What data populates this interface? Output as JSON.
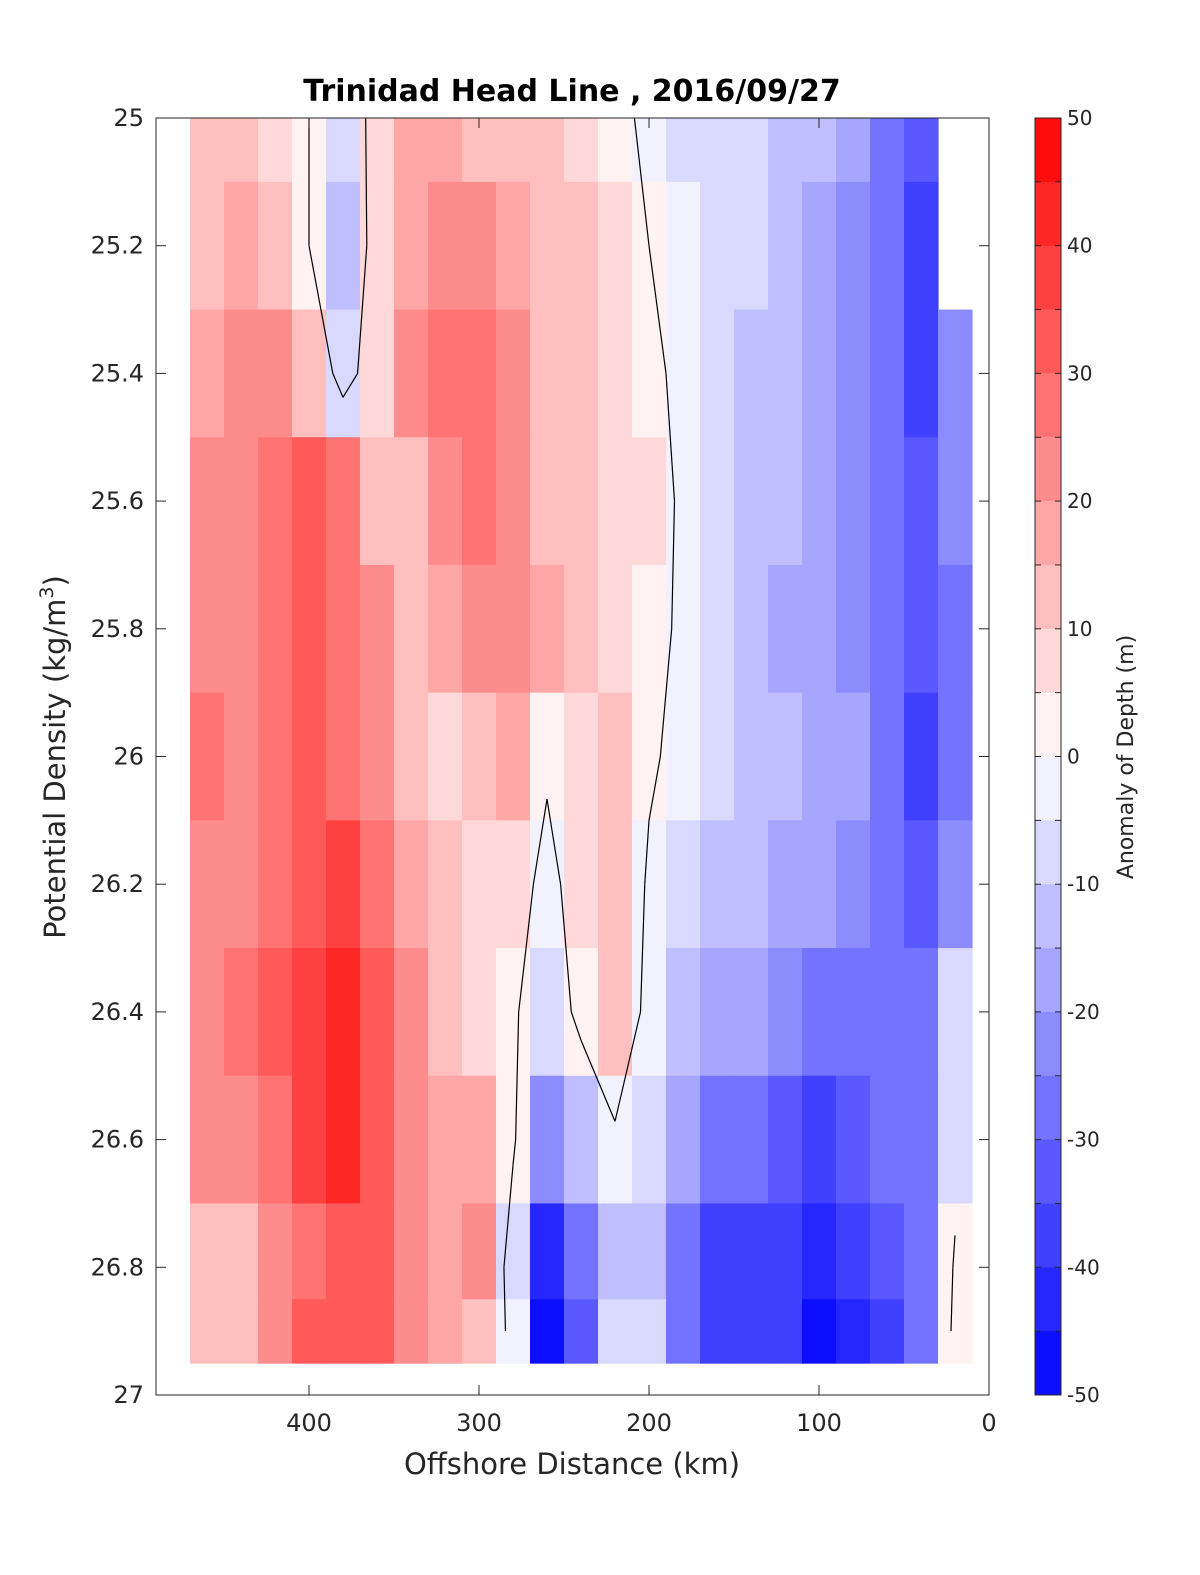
{
  "chart_data": {
    "type": "heatmap",
    "title": "Trinidad Head Line , 2016/09/27",
    "xlabel": "Offshore Distance (km)",
    "ylabel_prefix": "Potential Density (kg/m",
    "ylabel_sup": "3",
    "ylabel_suffix": ")",
    "xlim": [
      490,
      0
    ],
    "ylim": [
      27,
      25
    ],
    "x_ticks": [
      400,
      300,
      200,
      100,
      0
    ],
    "x_tick_labels": [
      "400",
      "300",
      "200",
      "100",
      "0"
    ],
    "y_ticks": [
      25,
      25.2,
      25.4,
      25.6,
      25.8,
      26,
      26.2,
      26.4,
      26.6,
      26.8,
      27
    ],
    "y_tick_labels": [
      "25",
      "25.2",
      "25.4",
      "25.6",
      "25.8",
      "26",
      "26.2",
      "26.4",
      "26.6",
      "26.8",
      "27"
    ],
    "colorbar": {
      "label": "Anomaly of Depth (m)",
      "range": [
        -50,
        50
      ],
      "step": 5,
      "tick_values": [
        50,
        40,
        30,
        20,
        10,
        0,
        -10,
        -20,
        -30,
        -40,
        -50
      ],
      "tick_labels": [
        "50",
        "40",
        "30",
        "20",
        "10",
        "0",
        "-10",
        "-20",
        "-30",
        "-40",
        "-50"
      ],
      "low_color": "#0000ff",
      "mid_color": "#ffffff",
      "high_color": "#ff0000"
    },
    "x": [
      460,
      440,
      420,
      400,
      380,
      360,
      340,
      320,
      300,
      280,
      260,
      240,
      220,
      200,
      180,
      160,
      140,
      120,
      100,
      80,
      60,
      40,
      20
    ],
    "y": [
      25.0,
      25.2,
      25.4,
      25.6,
      25.8,
      26.0,
      26.2,
      26.4,
      26.6,
      26.8,
      26.9
    ],
    "z": [
      [
        10,
        12,
        8,
        0,
        -10,
        5,
        15,
        18,
        14,
        12,
        10,
        8,
        4,
        -3,
        -6,
        -8,
        -10,
        -12,
        -15,
        -20,
        -28,
        -32,
        null
      ],
      [
        14,
        16,
        10,
        0,
        -14,
        6,
        18,
        22,
        22,
        18,
        14,
        10,
        6,
        0,
        -5,
        -8,
        -10,
        -14,
        -18,
        -22,
        -30,
        -36,
        null
      ],
      [
        18,
        22,
        20,
        14,
        -6,
        8,
        20,
        28,
        28,
        20,
        14,
        10,
        8,
        4,
        -4,
        -8,
        -12,
        -15,
        -18,
        -24,
        -30,
        -36,
        -24
      ],
      [
        20,
        24,
        26,
        30,
        26,
        14,
        12,
        20,
        28,
        22,
        14,
        10,
        8,
        6,
        -2,
        -8,
        -12,
        -14,
        -18,
        -22,
        -28,
        -32,
        -24
      ],
      [
        22,
        24,
        28,
        32,
        28,
        20,
        14,
        18,
        22,
        22,
        16,
        10,
        8,
        4,
        -2,
        -8,
        -12,
        -16,
        -18,
        -22,
        -28,
        -34,
        -26
      ],
      [
        26,
        22,
        26,
        30,
        28,
        22,
        12,
        6,
        14,
        16,
        2,
        8,
        12,
        2,
        -4,
        -8,
        -12,
        -14,
        -16,
        -20,
        -26,
        -36,
        -28
      ],
      [
        20,
        22,
        28,
        34,
        36,
        28,
        18,
        10,
        8,
        6,
        -4,
        6,
        14,
        -2,
        -8,
        -12,
        -14,
        -18,
        -20,
        -24,
        -28,
        -34,
        -22
      ],
      [
        24,
        26,
        30,
        38,
        42,
        34,
        22,
        12,
        6,
        2,
        -10,
        4,
        12,
        -4,
        -12,
        -18,
        -20,
        -22,
        -28,
        -30,
        -28,
        -30,
        -8
      ],
      [
        22,
        24,
        28,
        36,
        40,
        34,
        22,
        16,
        18,
        2,
        -24,
        -14,
        -2,
        -8,
        -20,
        -26,
        -28,
        -32,
        -38,
        -32,
        -30,
        -30,
        -6
      ],
      [
        14,
        10,
        22,
        28,
        32,
        34,
        24,
        16,
        22,
        -8,
        -44,
        -30,
        -12,
        -12,
        -28,
        -36,
        -36,
        -38,
        -44,
        -40,
        -34,
        -30,
        2
      ],
      [
        14,
        14,
        22,
        30,
        34,
        32,
        24,
        16,
        14,
        -4,
        -48,
        -32,
        -10,
        -10,
        -28,
        -38,
        -38,
        -40,
        -46,
        -42,
        -36,
        -30,
        4
      ]
    ]
  }
}
